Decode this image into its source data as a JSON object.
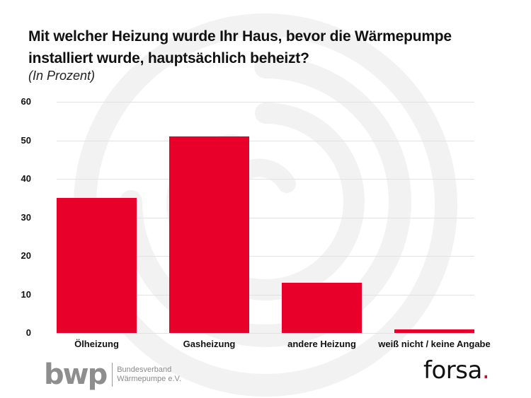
{
  "header": {
    "title": "Mit welcher Heizung wurde Ihr Haus, bevor die Wärmepumpe installiert wurde, hauptsächlich beheizt?",
    "subtitle": "(In Prozent)"
  },
  "colors": {
    "bar": "#e8002a",
    "grid": "#e2e2e2",
    "background_spiral": "#f2f2f2",
    "logo_gray": "#8e8e8e"
  },
  "chart_data": {
    "type": "bar",
    "title": "Mit welcher Heizung wurde Ihr Haus, bevor die Wärmepumpe installiert wurde, hauptsächlich beheizt?",
    "subtitle": "(In Prozent)",
    "categories": [
      "Ölheizung",
      "Gasheizung",
      "andere Heizung",
      "weiß nicht / keine Angabe"
    ],
    "values": [
      35,
      51,
      13,
      1
    ],
    "xlabel": "",
    "ylabel": "",
    "ylim": [
      0,
      60
    ],
    "yticks": [
      0,
      10,
      20,
      30,
      40,
      50,
      60
    ],
    "grid": true,
    "legend": null
  },
  "footer": {
    "bwp_logo": "bwp",
    "bwp_line1": "Bundesverband",
    "bwp_line2": "Wärmepumpe e.V.",
    "forsa_logo": "forsa",
    "forsa_dot": "."
  }
}
